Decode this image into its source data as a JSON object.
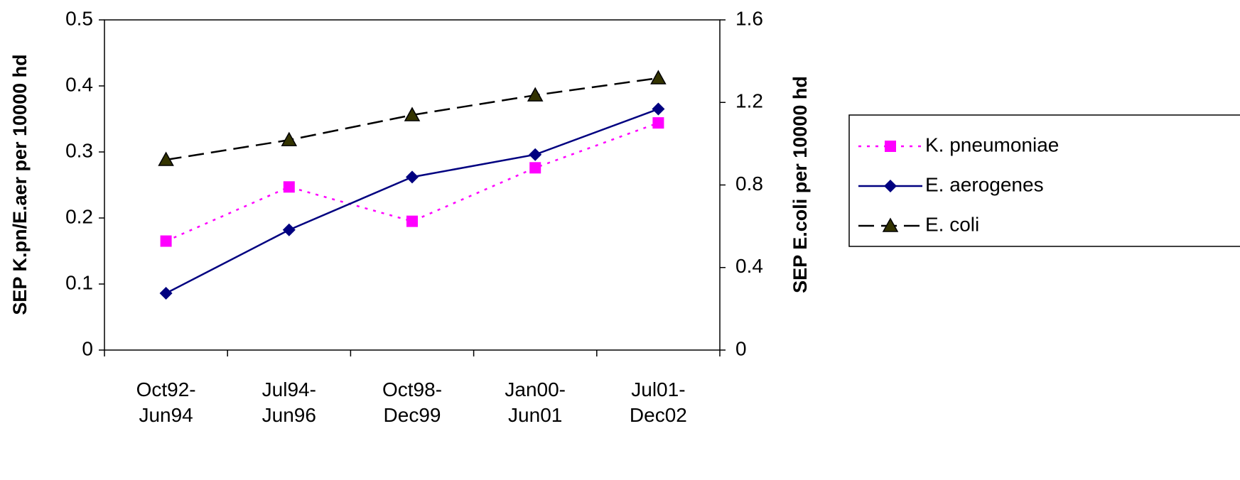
{
  "chart_data": {
    "type": "line",
    "categories": [
      "Oct92-\nJun94",
      "Jul94-\nJun96",
      "Oct98-\nDec99",
      "Jan00-\nJun01",
      "Jul01-\nDec02"
    ],
    "y_label": "SEP K.pn/E.aer per 10000 hd",
    "y2_label": "SEP E.coli per 10000 hd",
    "ylim": [
      0,
      0.5
    ],
    "yticks": [
      0,
      0.1,
      0.2,
      0.3,
      0.4,
      0.5
    ],
    "y2lim": [
      0,
      1.6
    ],
    "y2ticks": [
      0,
      0.4,
      0.8,
      1.2,
      1.6
    ],
    "series": [
      {
        "name": "K. pneumoniae",
        "color": "#ff00ff",
        "dash": "4,8",
        "marker": "square",
        "values": [
          0.165,
          0.247,
          0.195,
          0.276,
          0.344
        ]
      },
      {
        "name": "E. aerogenes",
        "color": "#000080",
        "dash": "none",
        "marker": "diamond",
        "values": [
          0.086,
          0.182,
          0.262,
          0.296,
          0.365
        ]
      },
      {
        "name": "E. coli",
        "color": "#000000",
        "dash": "22,10",
        "marker": "triangle",
        "marker_color": "#333300",
        "axis": "y2",
        "values": [
          0.922,
          1.018,
          1.139,
          1.235,
          1.318
        ]
      }
    ],
    "legend": "right"
  }
}
